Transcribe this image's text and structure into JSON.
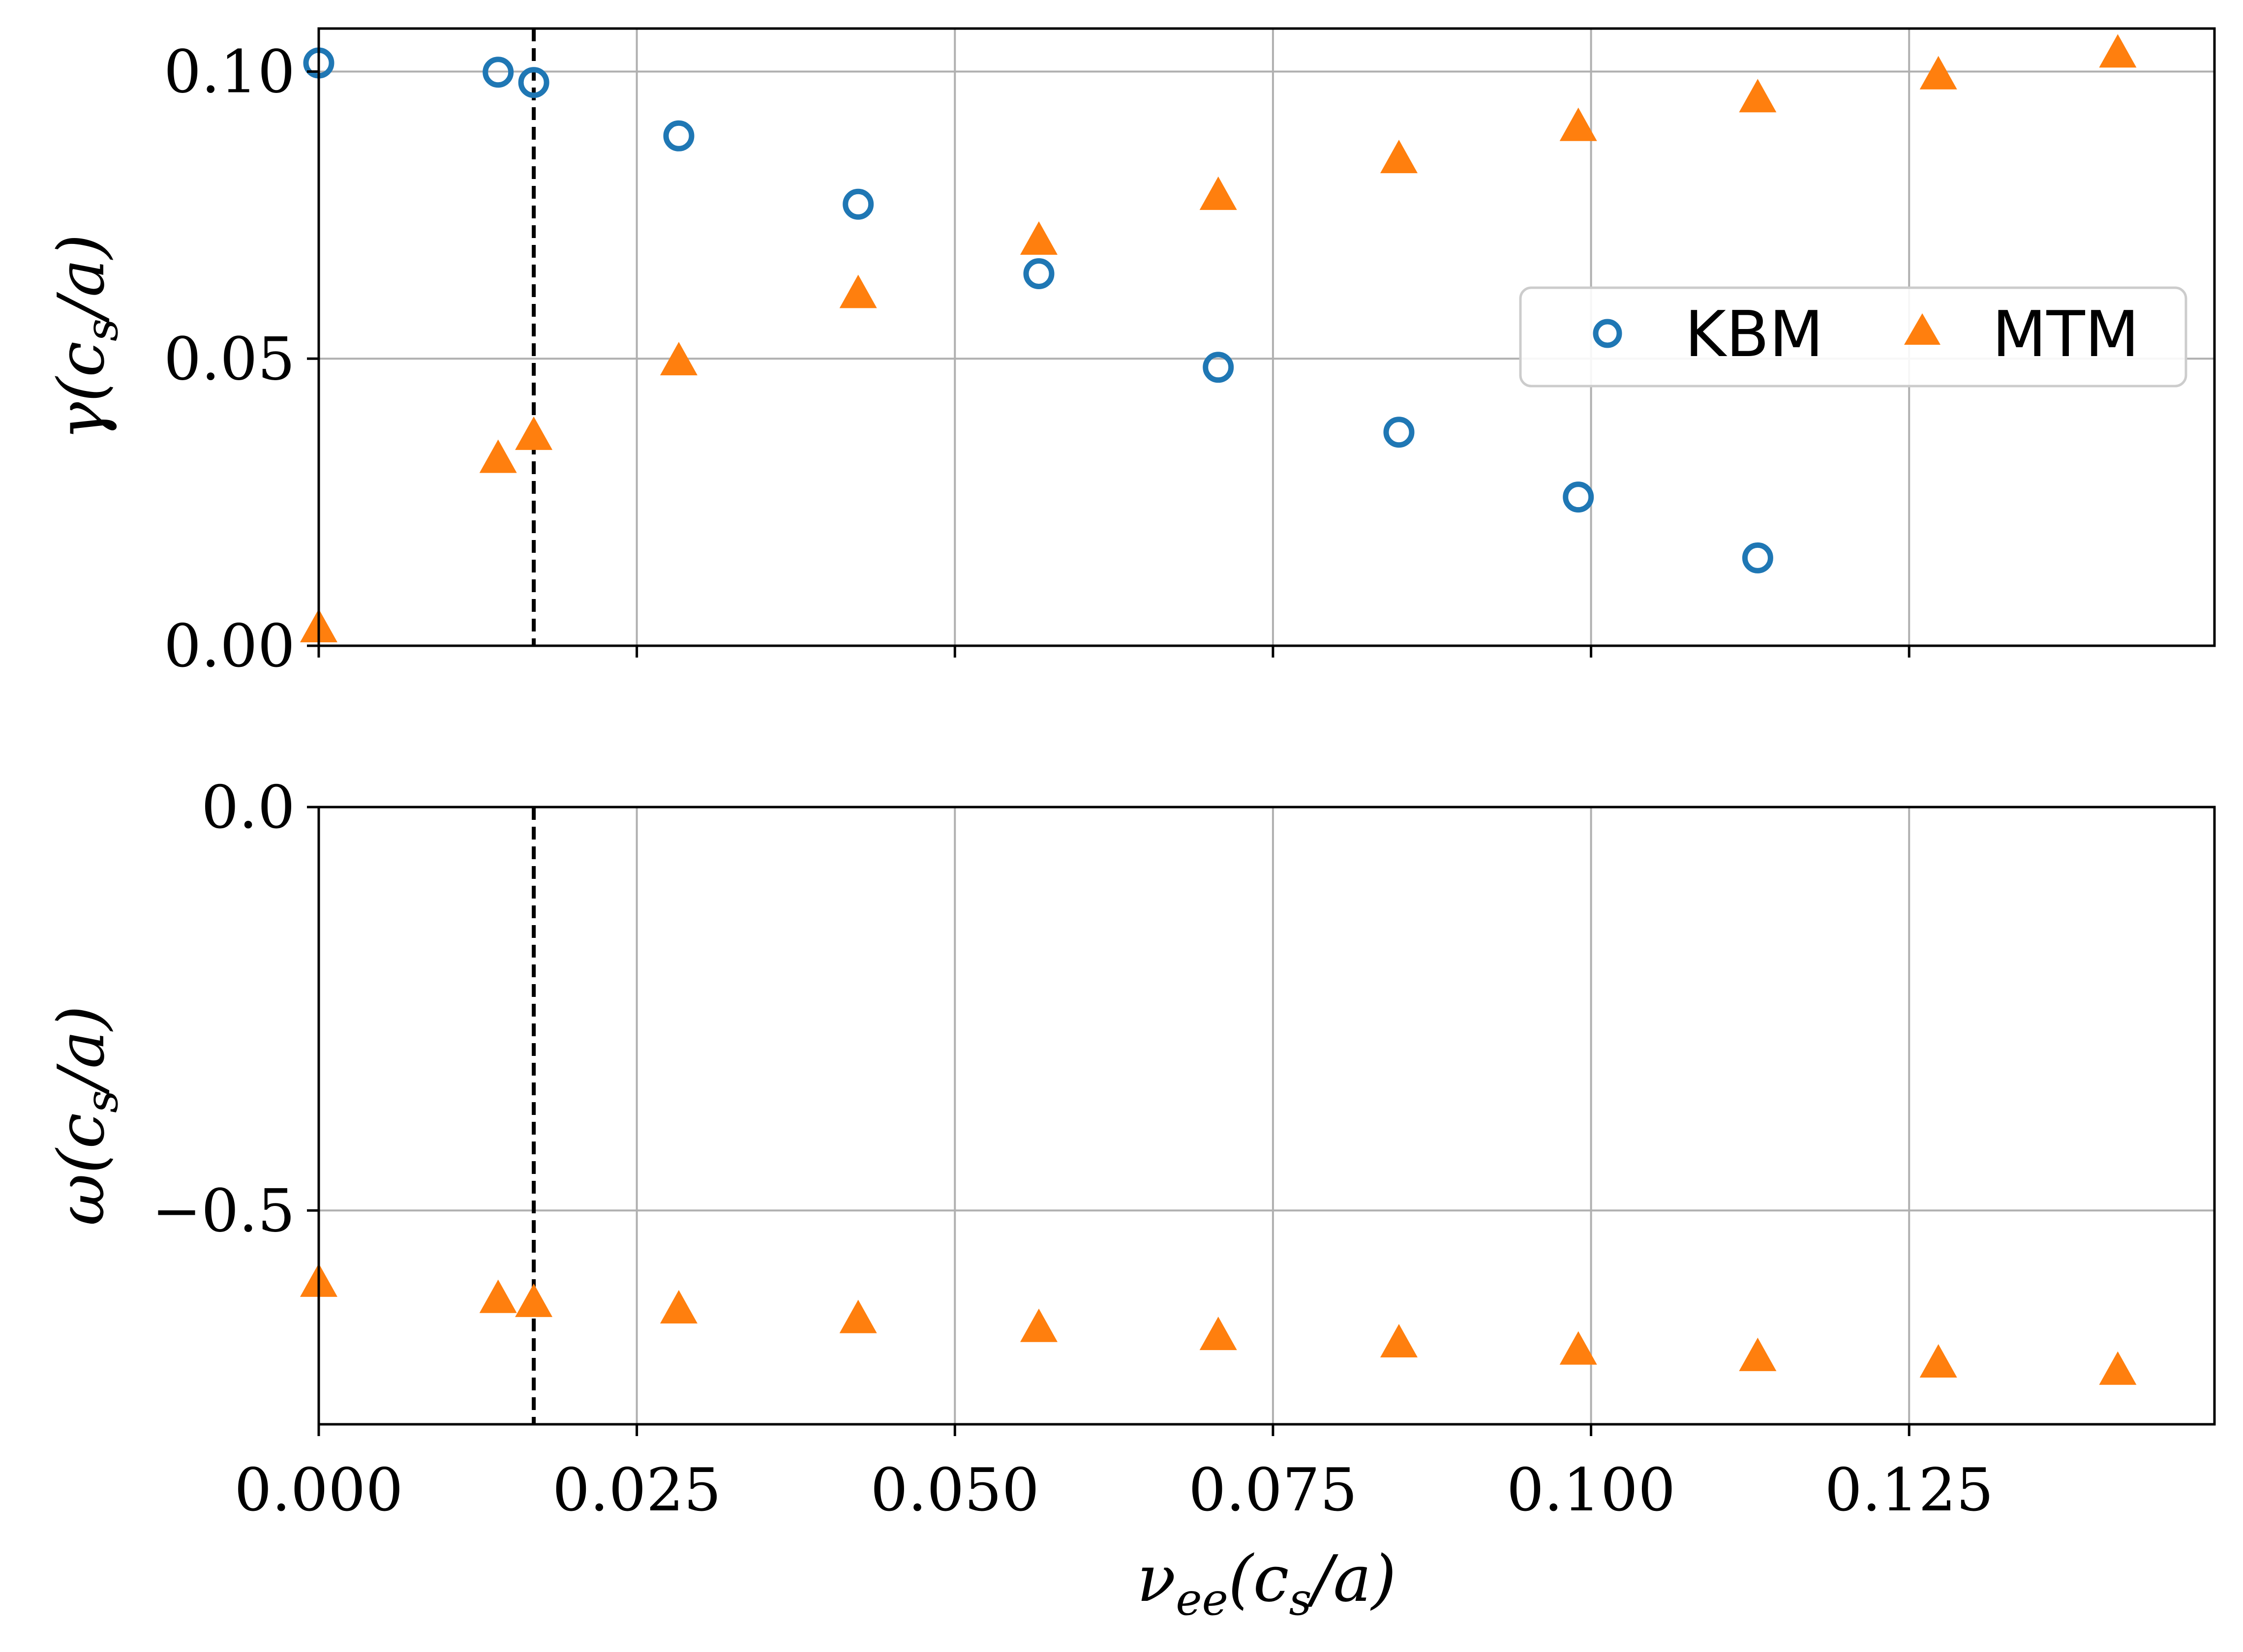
{
  "chart_data": [
    {
      "type": "scatter",
      "ylabel": "γ(c_s/a)",
      "ylabel_main": "γ(c",
      "ylabel_sub": "s",
      "ylabel_tail": "/a)",
      "xlim": [
        0.0,
        0.149
      ],
      "ylim": [
        0.0,
        0.1075
      ],
      "yticks": [
        0.0,
        0.05,
        0.1
      ],
      "ytick_labels": [
        "0.00",
        "0.05",
        "0.10"
      ],
      "xticks": [
        0.0,
        0.025,
        0.05,
        0.075,
        0.1,
        0.125
      ],
      "grid": true,
      "legend_position": "center-right",
      "vline_x": 0.0169,
      "series": [
        {
          "name": "KBM",
          "marker": "open-circle",
          "color": "#1f77b4",
          "x": [
            0.0,
            0.0141,
            0.0169,
            0.0283,
            0.0424,
            0.0566,
            0.0707,
            0.0849,
            0.099,
            0.1131
          ],
          "y": [
            0.1015,
            0.0999,
            0.0981,
            0.0888,
            0.0769,
            0.0648,
            0.0485,
            0.0372,
            0.0259,
            0.0153
          ]
        },
        {
          "name": "MTM",
          "marker": "filled-triangle",
          "color": "#ff7f0e",
          "x": [
            0.0,
            0.0141,
            0.0169,
            0.0283,
            0.0424,
            0.0566,
            0.0707,
            0.0849,
            0.099,
            0.1131,
            0.1273,
            0.1414
          ],
          "y": [
            0.003,
            0.0325,
            0.0365,
            0.0495,
            0.0612,
            0.0705,
            0.0783,
            0.0847,
            0.0903,
            0.0953,
            0.0993,
            0.1031
          ]
        }
      ]
    },
    {
      "type": "scatter",
      "ylabel": "ω(c_s/a)",
      "ylabel_main": "ω(c",
      "ylabel_sub": "s",
      "ylabel_tail": "/a)",
      "xlabel": "ν_ee(c_s/a)",
      "xlabel_main": "ν",
      "xlabel_sub1": "ee",
      "xlabel_mid": "(c",
      "xlabel_sub2": "s",
      "xlabel_tail": "/a)",
      "xlim": [
        0.0,
        0.149
      ],
      "ylim": [
        -0.765,
        0.0
      ],
      "yticks": [
        0.0,
        -0.5
      ],
      "ytick_labels": [
        "0.0",
        "−0.5"
      ],
      "xticks": [
        0.0,
        0.025,
        0.05,
        0.075,
        0.1,
        0.125
      ],
      "xtick_labels": [
        "0.000",
        "0.025",
        "0.050",
        "0.075",
        "0.100",
        "0.125"
      ],
      "grid": true,
      "vline_x": 0.0169,
      "series": [
        {
          "name": "MTM",
          "marker": "filled-triangle",
          "color": "#ff7f0e",
          "x": [
            0.0,
            0.0141,
            0.0169,
            0.0283,
            0.0424,
            0.0566,
            0.0707,
            0.0849,
            0.099,
            0.1131,
            0.1273,
            0.1414
          ],
          "y": [
            -0.59,
            -0.61,
            -0.615,
            -0.623,
            -0.635,
            -0.646,
            -0.656,
            -0.665,
            -0.674,
            -0.682,
            -0.69,
            -0.699
          ]
        }
      ]
    }
  ],
  "legend": {
    "items": [
      {
        "label": "KBM",
        "marker": "open-circle",
        "color": "#1f77b4"
      },
      {
        "label": "MTM",
        "marker": "filled-triangle",
        "color": "#ff7f0e"
      }
    ]
  }
}
